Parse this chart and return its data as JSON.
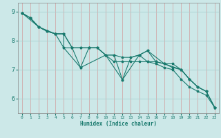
{
  "xlabel": "Humidex (Indice chaleur)",
  "bg_color": "#cce8e8",
  "line_color": "#1a7a6e",
  "grid_h_color": "#a8d0d0",
  "grid_v_color": "#d0aaaa",
  "xlim": [
    -0.5,
    23.5
  ],
  "ylim": [
    5.5,
    9.3
  ],
  "yticks": [
    6,
    7,
    8,
    9
  ],
  "xticks": [
    0,
    1,
    2,
    3,
    4,
    5,
    6,
    7,
    8,
    9,
    10,
    11,
    12,
    13,
    14,
    15,
    16,
    17,
    18,
    19,
    20,
    21,
    22,
    23
  ],
  "series1": [
    [
      0,
      8.95
    ],
    [
      1,
      8.78
    ],
    [
      2,
      8.47
    ],
    [
      3,
      8.32
    ],
    [
      4,
      8.23
    ],
    [
      5,
      8.23
    ],
    [
      5,
      7.75
    ],
    [
      6,
      7.75
    ],
    [
      7,
      7.07
    ],
    [
      8,
      7.75
    ],
    [
      9,
      7.75
    ],
    [
      10,
      7.5
    ],
    [
      11,
      7.5
    ],
    [
      12,
      6.65
    ],
    [
      13,
      7.42
    ],
    [
      14,
      7.5
    ],
    [
      15,
      7.65
    ],
    [
      16,
      7.27
    ],
    [
      17,
      7.2
    ],
    [
      18,
      7.2
    ],
    [
      19,
      7.0
    ],
    [
      20,
      6.67
    ],
    [
      21,
      6.4
    ],
    [
      22,
      6.25
    ],
    [
      23,
      5.7
    ]
  ],
  "series2": [
    [
      0,
      8.95
    ],
    [
      1,
      8.78
    ],
    [
      2,
      8.47
    ],
    [
      3,
      8.32
    ],
    [
      4,
      8.23
    ],
    [
      5,
      8.23
    ],
    [
      6,
      7.75
    ],
    [
      7,
      7.75
    ],
    [
      8,
      7.75
    ],
    [
      9,
      7.75
    ],
    [
      10,
      7.5
    ],
    [
      11,
      7.5
    ],
    [
      12,
      7.42
    ],
    [
      13,
      7.42
    ],
    [
      14,
      7.5
    ],
    [
      15,
      7.27
    ],
    [
      16,
      7.27
    ],
    [
      17,
      7.2
    ],
    [
      18,
      7.07
    ],
    [
      19,
      7.0
    ],
    [
      20,
      6.67
    ],
    [
      21,
      6.4
    ],
    [
      22,
      6.25
    ],
    [
      23,
      5.7
    ]
  ],
  "series3": [
    [
      0,
      8.95
    ],
    [
      2,
      8.47
    ],
    [
      4,
      8.23
    ],
    [
      5,
      7.75
    ],
    [
      7,
      7.07
    ],
    [
      10,
      7.5
    ],
    [
      12,
      6.65
    ],
    [
      14,
      7.5
    ],
    [
      15,
      7.65
    ],
    [
      17,
      7.2
    ],
    [
      19,
      7.0
    ],
    [
      20,
      6.67
    ],
    [
      21,
      6.4
    ],
    [
      22,
      6.25
    ],
    [
      23,
      5.7
    ]
  ],
  "series4": [
    [
      0,
      8.95
    ],
    [
      1,
      8.78
    ],
    [
      2,
      8.47
    ],
    [
      3,
      8.32
    ],
    [
      4,
      8.23
    ],
    [
      5,
      8.23
    ],
    [
      6,
      7.75
    ],
    [
      7,
      7.75
    ],
    [
      8,
      7.75
    ],
    [
      9,
      7.75
    ],
    [
      10,
      7.5
    ],
    [
      11,
      7.27
    ],
    [
      12,
      7.27
    ],
    [
      13,
      7.27
    ],
    [
      14,
      7.27
    ],
    [
      15,
      7.27
    ],
    [
      16,
      7.2
    ],
    [
      17,
      7.07
    ],
    [
      18,
      7.0
    ],
    [
      19,
      6.67
    ],
    [
      20,
      6.4
    ],
    [
      21,
      6.25
    ],
    [
      22,
      6.12
    ],
    [
      23,
      5.7
    ]
  ]
}
